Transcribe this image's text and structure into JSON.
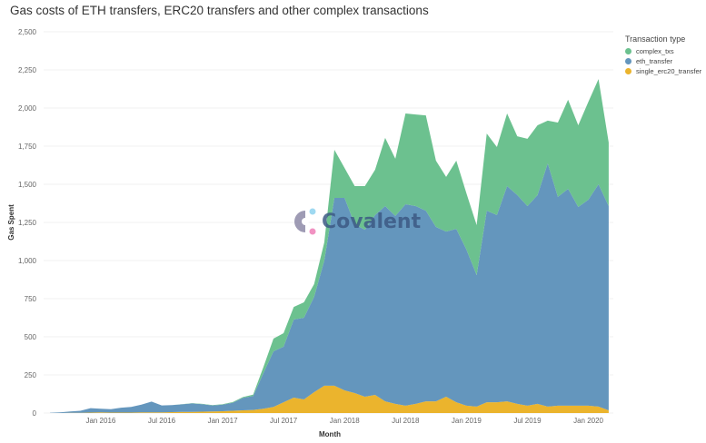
{
  "title": "Gas costs of ETH transfers, ERC20 transfers and other complex transactions",
  "watermark": "Covalent",
  "legend": {
    "title": "Transaction type",
    "items": [
      {
        "label": "complex_txs",
        "color": "#6cc18f"
      },
      {
        "label": "eth_transfer",
        "color": "#6496bd"
      },
      {
        "label": "single_erc20_transfer",
        "color": "#ebb42d"
      }
    ]
  },
  "chart_data": {
    "type": "area",
    "stacked": true,
    "xlabel": "Month",
    "ylabel": "Gas Spent",
    "ylim": [
      0,
      2500
    ],
    "yticks": [
      "0",
      "250",
      "500",
      "750",
      "1,000",
      "1,250",
      "1,500",
      "1,750",
      "2,000",
      "2,250",
      "2,500"
    ],
    "xticks": [
      "Jan 2016",
      "Jul 2016",
      "Jan 2017",
      "Jul 2017",
      "Jan 2018",
      "Jul 2018",
      "Jan 2019",
      "Jul 2019",
      "Jan 2020"
    ],
    "grid": true,
    "legend_position": "top-right",
    "x": [
      "2015-08",
      "2015-09",
      "2015-10",
      "2015-11",
      "2015-12",
      "2016-01",
      "2016-02",
      "2016-03",
      "2016-04",
      "2016-05",
      "2016-06",
      "2016-07",
      "2016-08",
      "2016-09",
      "2016-10",
      "2016-11",
      "2016-12",
      "2017-01",
      "2017-02",
      "2017-03",
      "2017-04",
      "2017-05",
      "2017-06",
      "2017-07",
      "2017-08",
      "2017-09",
      "2017-10",
      "2017-11",
      "2017-12",
      "2018-01",
      "2018-02",
      "2018-03",
      "2018-04",
      "2018-05",
      "2018-06",
      "2018-07",
      "2018-08",
      "2018-09",
      "2018-10",
      "2018-11",
      "2018-12",
      "2019-01",
      "2019-02",
      "2019-03",
      "2019-04",
      "2019-05",
      "2019-06",
      "2019-07",
      "2019-08",
      "2019-09",
      "2019-10",
      "2019-11",
      "2019-12",
      "2020-01",
      "2020-02",
      "2020-03"
    ],
    "series": [
      {
        "name": "single_erc20_transfer",
        "values": [
          0,
          0,
          1,
          2,
          3,
          5,
          3,
          3,
          3,
          4,
          5,
          5,
          6,
          7,
          8,
          9,
          10,
          12,
          15,
          18,
          20,
          28,
          40,
          71,
          101,
          89,
          137,
          179,
          179,
          149,
          131,
          107,
          119,
          77,
          60,
          48,
          60,
          77,
          77,
          107,
          71,
          48,
          42,
          71,
          71,
          77,
          60,
          48,
          60,
          42,
          48,
          48,
          48,
          48,
          42,
          18
        ]
      },
      {
        "name": "eth_transfer",
        "values": [
          2,
          5,
          9,
          13,
          29,
          23,
          22,
          32,
          37,
          51,
          70,
          45,
          46,
          50,
          55,
          49,
          40,
          43,
          53,
          82,
          92,
          232,
          365,
          364,
          512,
          536,
          625,
          821,
          1232,
          1262,
          1107,
          1095,
          1179,
          1280,
          1232,
          1321,
          1297,
          1250,
          1143,
          1083,
          1137,
          1023,
          863,
          1256,
          1227,
          1411,
          1369,
          1309,
          1369,
          1595,
          1369,
          1422,
          1303,
          1351,
          1458,
          1339
        ]
      },
      {
        "name": "complex_txs",
        "values": [
          0,
          0,
          0,
          0,
          0,
          0,
          0,
          0,
          0,
          0,
          0,
          0,
          0,
          1,
          2,
          2,
          2,
          3,
          4,
          5,
          8,
          40,
          83,
          89,
          83,
          101,
          83,
          119,
          315,
          196,
          250,
          286,
          297,
          447,
          375,
          595,
          601,
          625,
          435,
          358,
          447,
          369,
          327,
          506,
          446,
          476,
          386,
          441,
          458,
          280,
          488,
          584,
          536,
          641,
          690,
          417
        ]
      }
    ]
  }
}
